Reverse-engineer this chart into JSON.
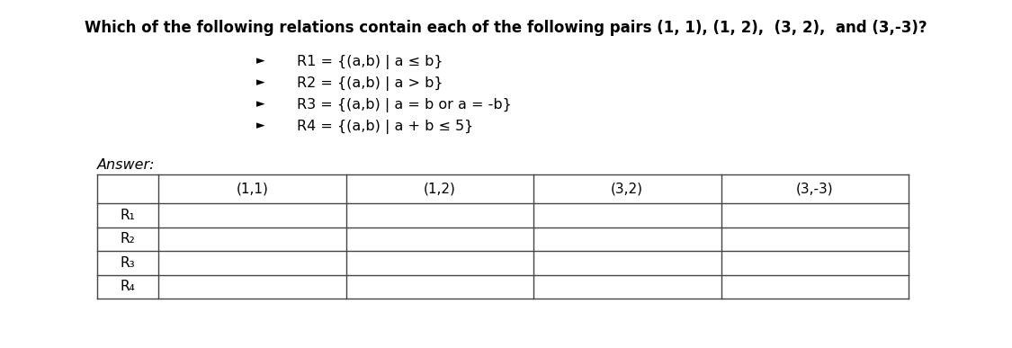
{
  "title": "Which of the following relations contain each of the following pairs (1, 1), (1, 2),  (3, 2),  and (3,-3)?",
  "title_fontsize": 12,
  "title_bold": true,
  "bullet_lines": [
    "R1 = {(a,b) | a ≤ b}",
    "R2 = {(a,b) | a > b}",
    "R3 = {(a,b) | a = b or a = -b}",
    "R4 = {(a,b) | a + b ≤ 5}"
  ],
  "answer_label": "Answer:",
  "col_headers": [
    "",
    "(1,1)",
    "(1,2)",
    "(3,2)",
    "(3,-3)"
  ],
  "row_labels": [
    "R₁",
    "R₂",
    "R₃",
    "R₄"
  ],
  "background_color": "#ffffff",
  "text_color": "#000000",
  "table_line_color": "#444444",
  "bullet_fontsize": 11.5,
  "answer_fontsize": 11.5,
  "row_label_fontsize": 11,
  "col_header_fontsize": 11
}
